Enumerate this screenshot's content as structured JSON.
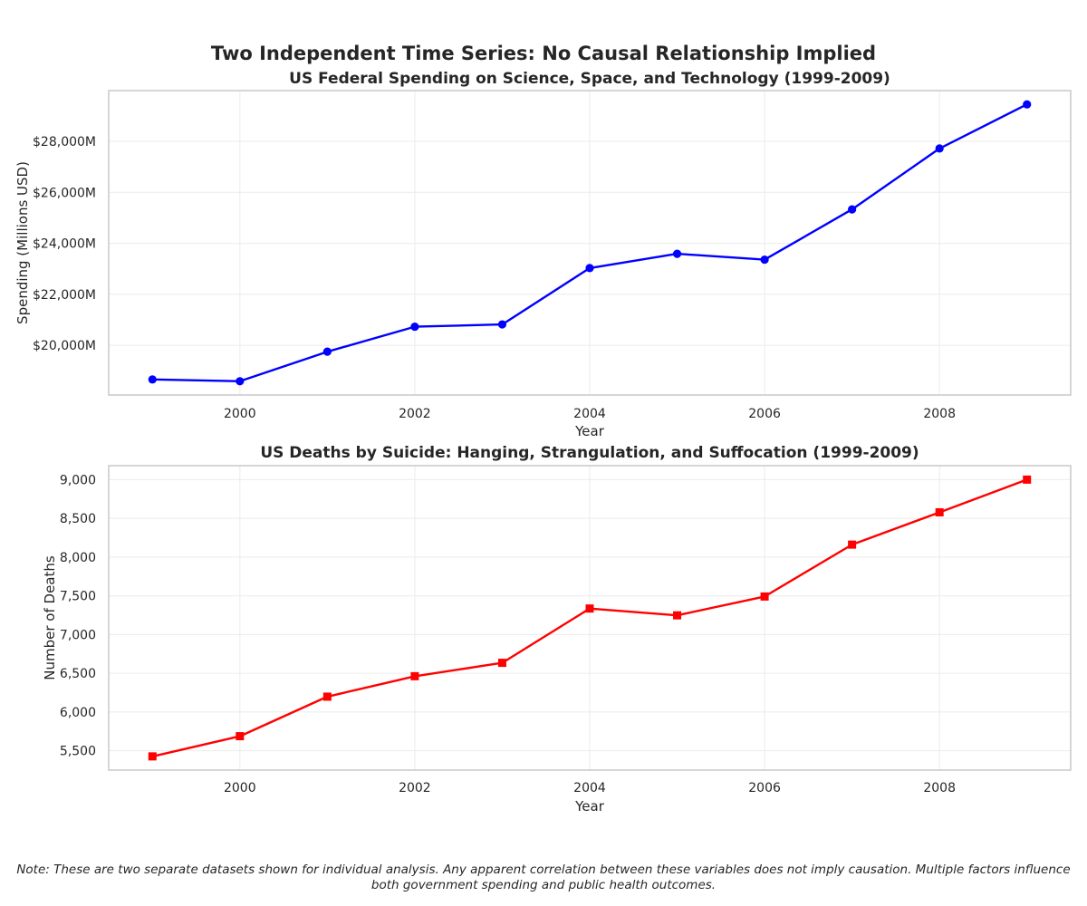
{
  "suptitle": "Two Independent Time Series: No Causal Relationship Implied",
  "note": "Note: These are two separate datasets shown for individual analysis. Any apparent correlation between these variables does not imply causation. Multiple factors influence both government spending and public health outcomes.",
  "colors": {
    "spending": "#0000ff",
    "deaths": "#ff0000",
    "grid": "#ebebeb",
    "spine": "#cccccc"
  },
  "chart_data": [
    {
      "type": "line",
      "title": "US Federal Spending on Science, Space, and Technology (1999-2009)",
      "xlabel": "Year",
      "ylabel": "Spending (Millions USD)",
      "x": [
        1999,
        2000,
        2001,
        2002,
        2003,
        2004,
        2005,
        2006,
        2007,
        2008,
        2009
      ],
      "series": [
        {
          "values": [
            18660,
            18590,
            19750,
            20730,
            20820,
            23030,
            23590,
            23360,
            25330,
            27720,
            29450
          ],
          "marker": "circle"
        }
      ],
      "xticks": [
        2000,
        2002,
        2004,
        2006,
        2008
      ],
      "yticks": [
        20000,
        22000,
        24000,
        26000,
        28000
      ],
      "ytick_labels": [
        "$20,000M",
        "$22,000M",
        "$24,000M",
        "$26,000M",
        "$28,000M"
      ],
      "xlim": [
        1998.5,
        2009.5
      ],
      "ylim": [
        18050,
        29990
      ],
      "grid": true,
      "legend": "none"
    },
    {
      "type": "line",
      "title": "US Deaths by Suicide: Hanging, Strangulation, and Suffocation (1999-2009)",
      "xlabel": "Year",
      "ylabel": "Number of Deaths",
      "x": [
        1999,
        2000,
        2001,
        2002,
        2003,
        2004,
        2005,
        2006,
        2007,
        2008,
        2009
      ],
      "series": [
        {
          "values": [
            5427,
            5688,
            6198,
            6462,
            6635,
            7336,
            7248,
            7491,
            8161,
            8578,
            9000
          ],
          "marker": "square"
        }
      ],
      "xticks": [
        2000,
        2002,
        2004,
        2006,
        2008
      ],
      "yticks": [
        5500,
        6000,
        6500,
        7000,
        7500,
        8000,
        8500,
        9000
      ],
      "ytick_labels": [
        "5,500",
        "6,000",
        "6,500",
        "7,000",
        "7,500",
        "8,000",
        "8,500",
        "9,000"
      ],
      "xlim": [
        1998.5,
        2009.5
      ],
      "ylim": [
        5250,
        9180
      ],
      "grid": true,
      "legend": "none"
    }
  ]
}
